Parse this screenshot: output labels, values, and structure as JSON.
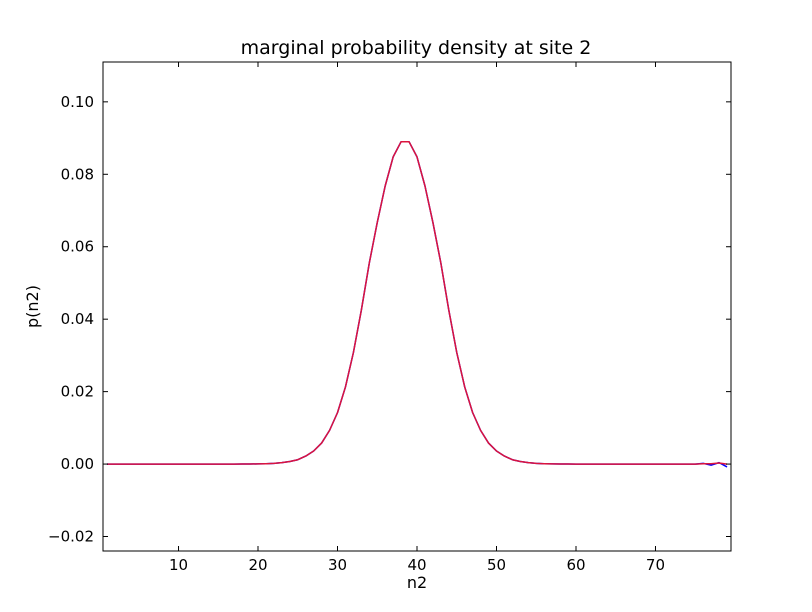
{
  "chart_data": {
    "type": "line",
    "title": "marginal probability density at site 2",
    "xlabel": "n2",
    "ylabel": "p(n2)",
    "xlim": [
      0.5,
      79.5
    ],
    "ylim": [
      -0.024,
      0.111
    ],
    "xticks": [
      10,
      20,
      30,
      40,
      50,
      60,
      70
    ],
    "yticks": [
      -0.02,
      0.0,
      0.02,
      0.04,
      0.06,
      0.08,
      0.1
    ],
    "ytick_labels": [
      "−0.02",
      "0.00",
      "0.02",
      "0.04",
      "0.06",
      "0.08",
      "0.10"
    ],
    "grid": false,
    "legend": false,
    "series": [
      {
        "color": "#0000ff",
        "x": [
          1,
          2,
          3,
          4,
          5,
          6,
          7,
          8,
          9,
          10,
          11,
          12,
          13,
          14,
          15,
          16,
          17,
          18,
          19,
          20,
          21,
          22,
          23,
          24,
          25,
          26,
          27,
          28,
          29,
          30,
          31,
          32,
          33,
          34,
          35,
          36,
          37,
          38,
          39,
          40,
          41,
          42,
          43,
          44,
          45,
          46,
          47,
          48,
          49,
          50,
          51,
          52,
          53,
          54,
          55,
          56,
          57,
          58,
          59,
          60,
          61,
          62,
          63,
          64,
          65,
          66,
          67,
          68,
          69,
          70,
          71,
          72,
          73,
          74,
          75,
          76,
          77,
          78,
          79
        ],
        "y": [
          0,
          0,
          0,
          0,
          0,
          0,
          0,
          0,
          0,
          0,
          0,
          0,
          0,
          0,
          0,
          0,
          0,
          1e-05,
          2e-05,
          5e-05,
          0.0001,
          0.0002,
          0.0004,
          0.0007,
          0.0012,
          0.0022,
          0.0036,
          0.0058,
          0.0093,
          0.0142,
          0.0213,
          0.0308,
          0.0425,
          0.0555,
          0.0667,
          0.0768,
          0.0848,
          0.089,
          0.089,
          0.0848,
          0.0768,
          0.0667,
          0.0555,
          0.0425,
          0.0308,
          0.0213,
          0.0142,
          0.0093,
          0.0058,
          0.0036,
          0.0022,
          0.0012,
          0.0007,
          0.0004,
          0.0002,
          0.0001,
          5e-05,
          2e-05,
          1e-05,
          0,
          0,
          0,
          0,
          0,
          0,
          0,
          0,
          0,
          0,
          0,
          0,
          0,
          0,
          0,
          0,
          0.0002,
          -0.0003,
          0.0004,
          -0.0008
        ]
      },
      {
        "color": "#dc143c",
        "x": [
          1,
          2,
          3,
          4,
          5,
          6,
          7,
          8,
          9,
          10,
          11,
          12,
          13,
          14,
          15,
          16,
          17,
          18,
          19,
          20,
          21,
          22,
          23,
          24,
          25,
          26,
          27,
          28,
          29,
          30,
          31,
          32,
          33,
          34,
          35,
          36,
          37,
          38,
          39,
          40,
          41,
          42,
          43,
          44,
          45,
          46,
          47,
          48,
          49,
          50,
          51,
          52,
          53,
          54,
          55,
          56,
          57,
          58,
          59,
          60,
          61,
          62,
          63,
          64,
          65,
          66,
          67,
          68,
          69,
          70,
          71,
          72,
          73,
          74,
          75,
          76,
          77,
          78,
          79
        ],
        "y": [
          0,
          0,
          0,
          0,
          0,
          0,
          0,
          0,
          0,
          0,
          0,
          0,
          0,
          0,
          0,
          0,
          0,
          1e-05,
          2e-05,
          5e-05,
          0.0001,
          0.0002,
          0.0004,
          0.0007,
          0.0012,
          0.0022,
          0.0036,
          0.0058,
          0.0093,
          0.0142,
          0.0213,
          0.0308,
          0.0425,
          0.0555,
          0.0667,
          0.0768,
          0.0848,
          0.089,
          0.089,
          0.0848,
          0.0768,
          0.0667,
          0.0555,
          0.0425,
          0.0308,
          0.0213,
          0.0142,
          0.0093,
          0.0058,
          0.0036,
          0.0022,
          0.0012,
          0.0007,
          0.0004,
          0.0002,
          0.0001,
          5e-05,
          2e-05,
          1e-05,
          0,
          0,
          0,
          0,
          0,
          0,
          0,
          0,
          0,
          0,
          0,
          0,
          0,
          0,
          0,
          0,
          0.0001,
          0.0001,
          0.0003,
          0.0
        ]
      }
    ]
  }
}
